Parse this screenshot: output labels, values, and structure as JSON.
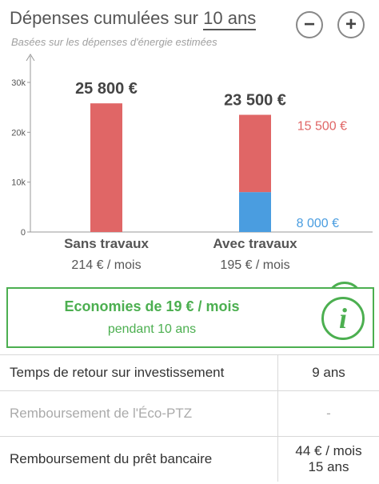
{
  "header": {
    "title_prefix": "Dépenses cumulées sur",
    "title_years": "10 ans",
    "subtitle": "Basées sur les dépenses d'énergie estimées",
    "minus_label": "−",
    "plus_label": "+"
  },
  "chart_data": {
    "type": "bar",
    "stacked": true,
    "categories": [
      "Sans travaux",
      "Avec travaux"
    ],
    "sublabels": [
      "214 € / mois",
      "195 € / mois"
    ],
    "totals_labels": [
      "25 800 €",
      "23 500 €"
    ],
    "series": [
      {
        "values": [
          25800,
          15500
        ],
        "color": "#e06666"
      },
      {
        "values": [
          0,
          8000
        ],
        "color": "#4a9de0"
      }
    ],
    "segment_labels": [
      {
        "category": "Avec travaux",
        "text": "15 500 €",
        "color": "#e06666"
      },
      {
        "category": "Avec travaux",
        "text": "8 000 €",
        "color": "#4a9de0"
      }
    ],
    "yticks": [
      0,
      10000,
      20000,
      30000
    ],
    "ytick_labels": [
      "0",
      "10k",
      "20k",
      "30k"
    ],
    "ylim": [
      0,
      30000
    ],
    "grid": false
  },
  "chart_info_icon": "i",
  "savings": {
    "main": "Economies de 19 € / mois",
    "sub": "pendant 10 ans",
    "info_icon": "i"
  },
  "table": {
    "rows": [
      {
        "label": "Temps de retour sur investissement",
        "value": [
          "9 ans"
        ]
      },
      {
        "label": "Remboursement de l'Éco-PTZ",
        "value": [
          "-"
        ]
      },
      {
        "label": "Remboursement du prêt bancaire",
        "value": [
          "44 € / mois",
          "15 ans"
        ]
      }
    ]
  },
  "colors": {
    "red": "#e06666",
    "blue": "#4a9de0",
    "green": "#4caf50"
  }
}
